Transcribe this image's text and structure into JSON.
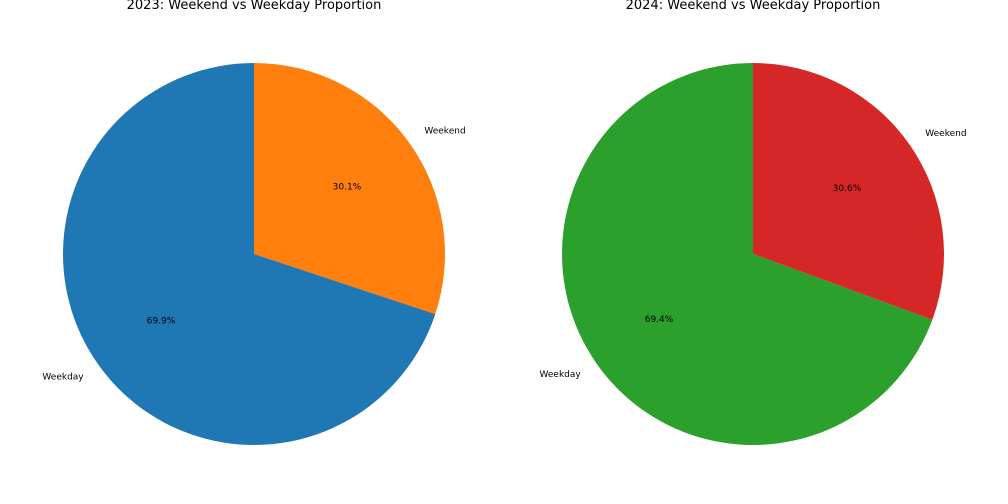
{
  "chart_data": [
    {
      "type": "pie",
      "title": "2023: Weekend vs Weekday Proportion",
      "categories": [
        "Weekend",
        "Weekday"
      ],
      "values": [
        30.1,
        69.9
      ],
      "value_labels": [
        "30.1%",
        "69.9%"
      ],
      "colors": [
        "#ff7f0e",
        "#1f77b4"
      ],
      "start_angle_deg": 90,
      "direction": "clockwise",
      "legend": "none"
    },
    {
      "type": "pie",
      "title": "2024: Weekend vs Weekday Proportion",
      "categories": [
        "Weekend",
        "Weekday"
      ],
      "values": [
        30.6,
        69.4
      ],
      "value_labels": [
        "30.6%",
        "69.4%"
      ],
      "colors": [
        "#d62728",
        "#2ca02c"
      ],
      "start_angle_deg": 90,
      "direction": "clockwise",
      "legend": "none"
    }
  ]
}
